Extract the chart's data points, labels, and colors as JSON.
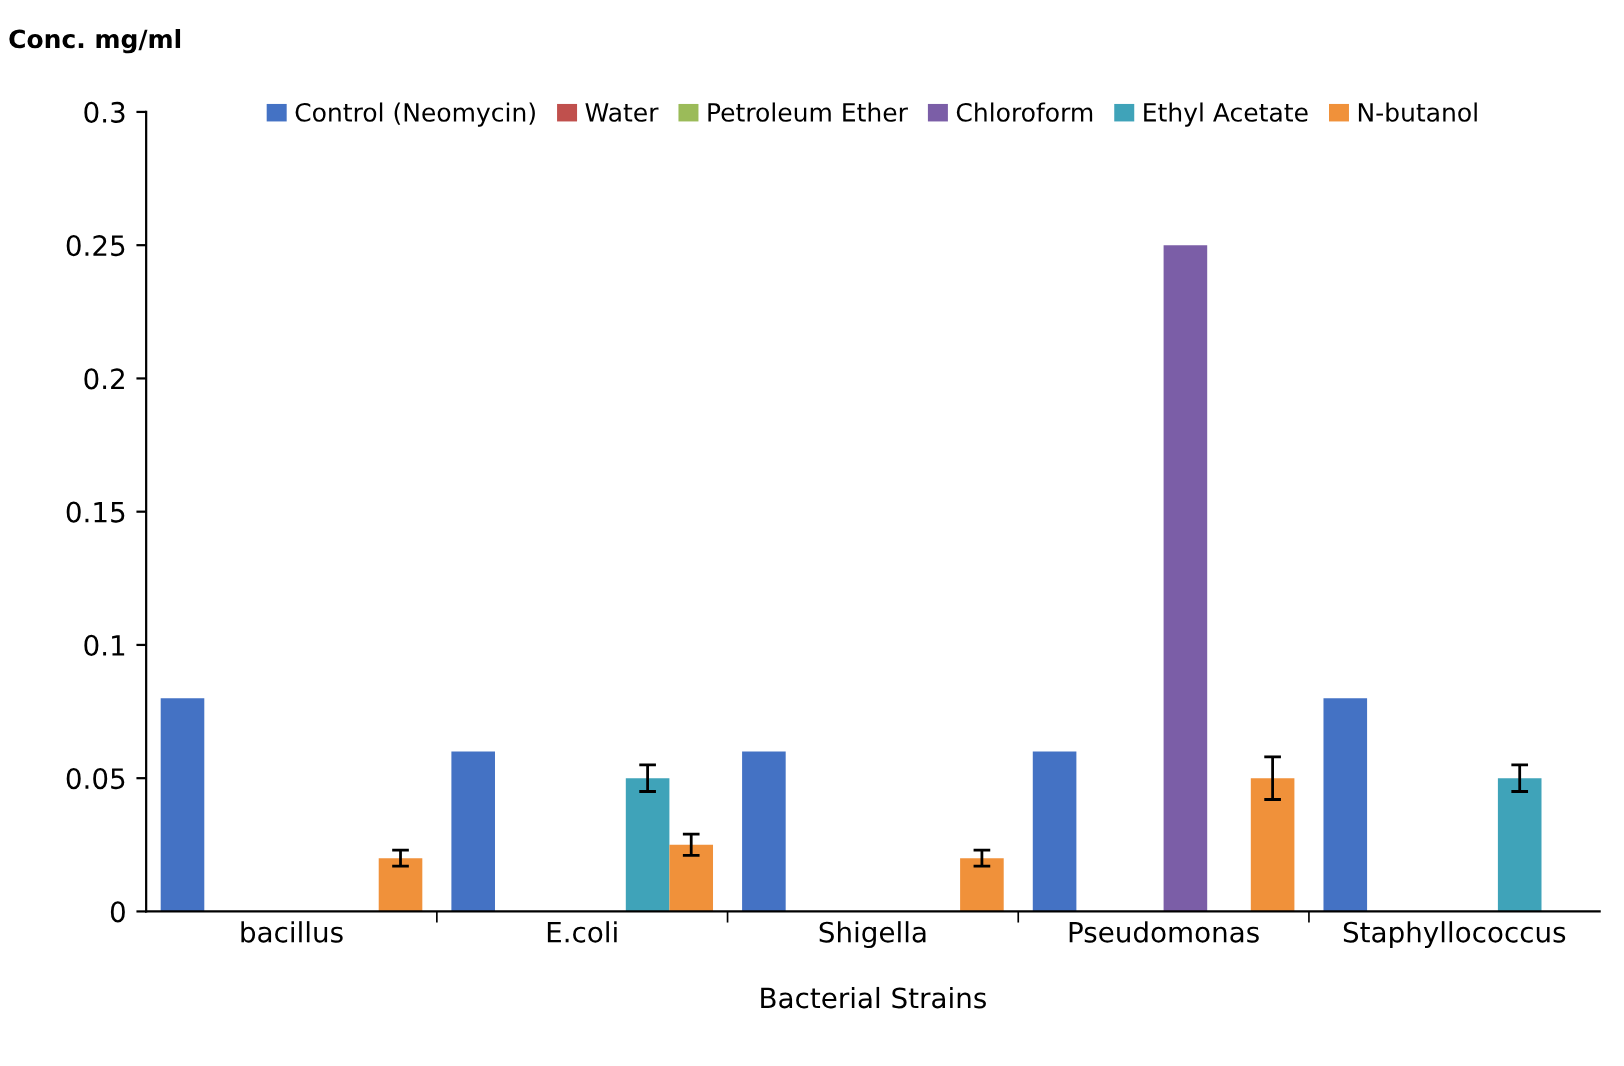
{
  "chart_data": {
    "type": "bar",
    "xlabel": "Bacterial Strains",
    "ylabel": "Conc. mg/ml",
    "categories": [
      "bacillus",
      "E.coli",
      "Shigella",
      "Pseudomonas",
      "Staphyllococcus"
    ],
    "series": [
      {
        "name": "Control (Neomycin)",
        "color": "#4472c4",
        "values": [
          0.08,
          0.06,
          0.06,
          0.06,
          0.08
        ]
      },
      {
        "name": "Water",
        "color": "#c0504d",
        "values": [
          null,
          null,
          null,
          null,
          null
        ]
      },
      {
        "name": "Petroleum Ether",
        "color": "#9bbb59",
        "values": [
          null,
          null,
          null,
          null,
          null
        ]
      },
      {
        "name": "Chloroform",
        "color": "#7b5ea7",
        "values": [
          null,
          null,
          null,
          0.25,
          null
        ]
      },
      {
        "name": "Ethyl Acetate",
        "color": "#3fa3b9",
        "values": [
          null,
          0.05,
          null,
          null,
          0.05
        ],
        "errors": [
          null,
          0.005,
          null,
          null,
          0.005
        ]
      },
      {
        "name": "N-butanol",
        "color": "#f0913a",
        "values": [
          0.02,
          0.025,
          0.02,
          0.05,
          null
        ],
        "errors": [
          0.003,
          0.004,
          0.003,
          0.008,
          null
        ]
      }
    ],
    "ylim": [
      0,
      0.3
    ],
    "yticks": [
      0,
      0.05,
      0.1,
      0.15,
      0.2,
      0.25,
      0.3
    ],
    "grid": false,
    "legend": "top"
  }
}
